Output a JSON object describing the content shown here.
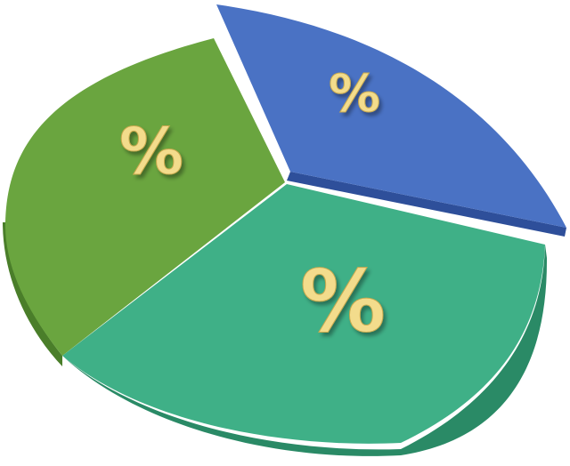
{
  "slices": [
    {
      "id": "blue",
      "label": "%",
      "top": "#4a72c4",
      "side": "#2e4f9a"
    },
    {
      "id": "green",
      "label": "%",
      "top": "#6aa53f",
      "side": "#4a7e2a"
    },
    {
      "id": "teal",
      "label": "%",
      "top": "#3fb087",
      "side": "#2a8a66"
    }
  ],
  "label_color": "#f3dc8c"
}
